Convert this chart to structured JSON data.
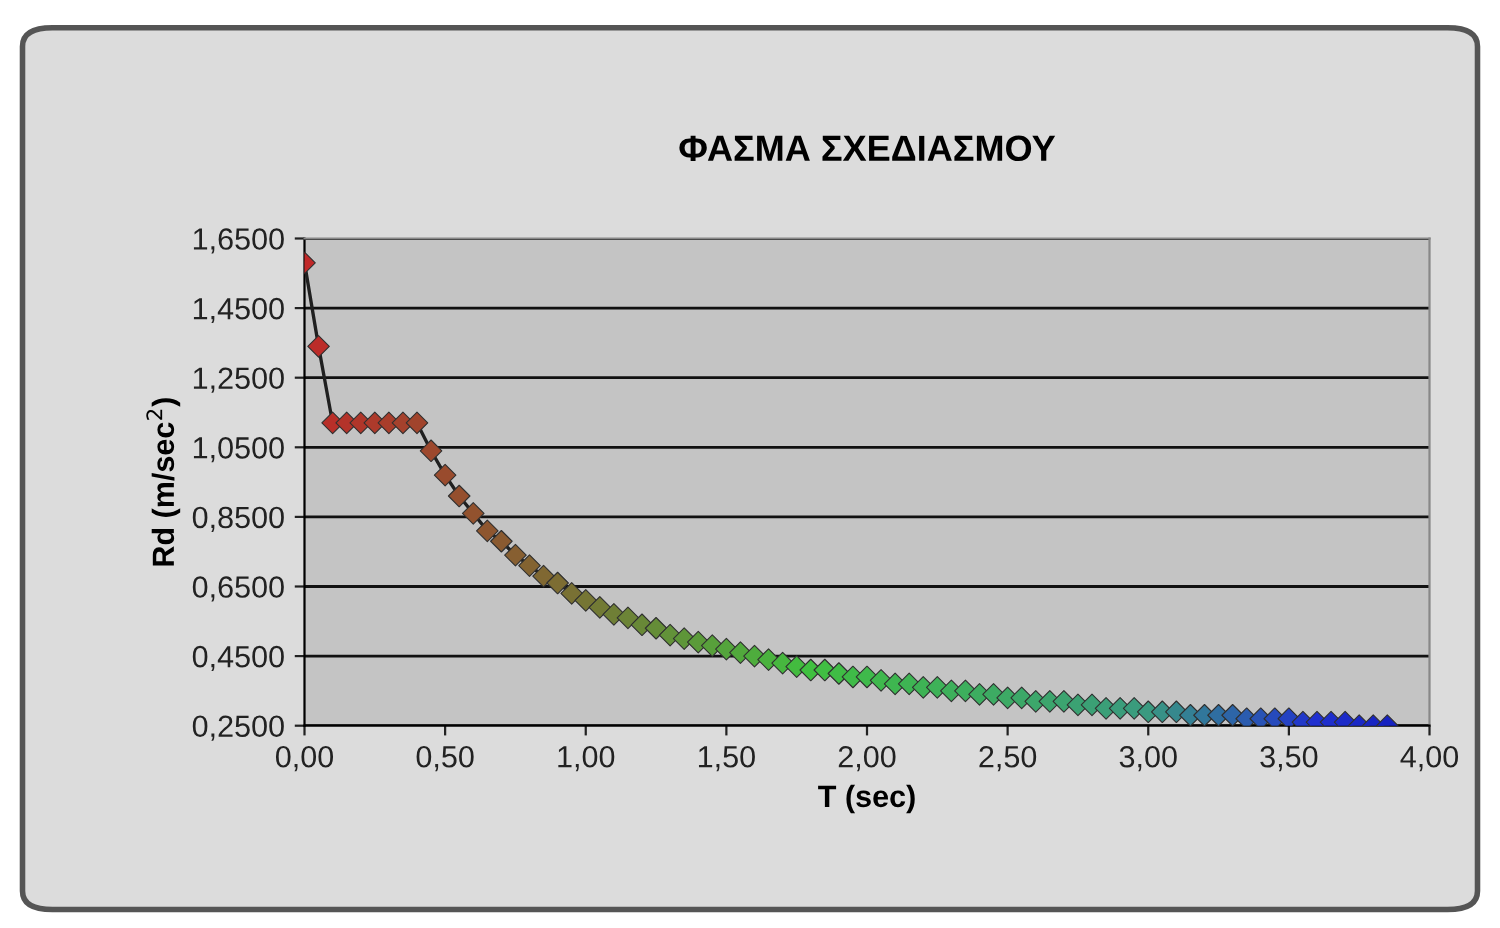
{
  "chart_data": {
    "type": "line",
    "title": "ΦΑΣΜΑ ΣΧΕΔΙΑΣΜΟΥ",
    "xlabel": "T (sec)",
    "ylabel": "Rd (m/sec$^{2}$)",
    "x": [
      0,
      0.05,
      0.1,
      0.15,
      0.2,
      0.25,
      0.3,
      0.35,
      0.4,
      0.45,
      0.5,
      0.55,
      0.6,
      0.65,
      0.7,
      0.75,
      0.8,
      0.85,
      0.9,
      0.95,
      1.0,
      1.05,
      1.1,
      1.15,
      1.2,
      1.25,
      1.3,
      1.35,
      1.4,
      1.45,
      1.5,
      1.55,
      1.6,
      1.65,
      1.7,
      1.75,
      1.8,
      1.85,
      1.9,
      1.95,
      2.0,
      2.05,
      2.1,
      2.15,
      2.2,
      2.25,
      2.3,
      2.35,
      2.4,
      2.45,
      2.5,
      2.55,
      2.6,
      2.65,
      2.7,
      2.75,
      2.8,
      2.85,
      2.9,
      2.95,
      3.0,
      3.05,
      3.1,
      3.15,
      3.2,
      3.25,
      3.3,
      3.35,
      3.4,
      3.45,
      3.5,
      3.55,
      3.6,
      3.65,
      3.7,
      3.75,
      3.8,
      3.85
    ],
    "series": [
      {
        "color": "#202020",
        "values": [
          1.58,
          1.34,
          1.12,
          1.12,
          1.12,
          1.12,
          1.12,
          1.12,
          1.12,
          1.04,
          0.97,
          0.91,
          0.86,
          0.81,
          0.78,
          0.74,
          0.71,
          0.68,
          0.66,
          0.63,
          0.61,
          0.59,
          0.57,
          0.56,
          0.54,
          0.53,
          0.51,
          0.5,
          0.49,
          0.48,
          0.47,
          0.46,
          0.45,
          0.44,
          0.43,
          0.42,
          0.41,
          0.41,
          0.4,
          0.39,
          0.39,
          0.38,
          0.37,
          0.37,
          0.36,
          0.36,
          0.35,
          0.35,
          0.34,
          0.34,
          0.33,
          0.33,
          0.32,
          0.32,
          0.32,
          0.31,
          0.31,
          0.3,
          0.3,
          0.3,
          0.29,
          0.29,
          0.29,
          0.28,
          0.28,
          0.28,
          0.28,
          0.27,
          0.27,
          0.27,
          0.27,
          0.26,
          0.26,
          0.26,
          0.26,
          0.25,
          0.25,
          0.25
        ],
        "colors": [
          "#c02828",
          "#bc2c29",
          "#b82f29",
          "#b4332a",
          "#b0362a",
          "#ad3a2b",
          "#a93d2b",
          "#a5412c",
          "#a1442c",
          "#9d482d",
          "#994b2d",
          "#954f2e",
          "#92522e",
          "#8e562f",
          "#8a5a30",
          "#875f31",
          "#836331",
          "#806832",
          "#7d6d33",
          "#797134",
          "#767634",
          "#727a35",
          "#6f7f36",
          "#6c8437",
          "#688837",
          "#658d38",
          "#629239",
          "#5e9639",
          "#5b9b3a",
          "#58a03b",
          "#54a43c",
          "#51a93c",
          "#4ead3d",
          "#4ab23e",
          "#47b73f",
          "#43bb3f",
          "#40c040",
          "#40be43",
          "#40bd45",
          "#3fbb48",
          "#3fba4b",
          "#3fb84d",
          "#3eb650",
          "#3eb553",
          "#3eb355",
          "#3eb258",
          "#3eb05b",
          "#3daf5d",
          "#3dad60",
          "#3dab63",
          "#3daa65",
          "#3ca868",
          "#3ca76b",
          "#3ca56d",
          "#3ca470",
          "#3ba273",
          "#3ba075",
          "#3b9f78",
          "#3b9d7b",
          "#3a9c7d",
          "#3a9a80",
          "#389187",
          "#36888d",
          "#348094",
          "#31779b",
          "#2f6ea1",
          "#2d65a8",
          "#2b5caf",
          "#2953b5",
          "#264abc",
          "#2442c3",
          "#2239c9",
          "#2030d0",
          "#1e2ecc",
          "#1c2bc9",
          "#1a28c6",
          "#1825c3",
          "#1622c0"
        ]
      }
    ],
    "xlim": [
      0,
      4
    ],
    "ylim": [
      0.25,
      1.65
    ],
    "xticks": [
      {
        "value": 0,
        "label": "0,00"
      },
      {
        "value": 0.5,
        "label": "0,50"
      },
      {
        "value": 1,
        "label": "1,00"
      },
      {
        "value": 1.5,
        "label": "1,50"
      },
      {
        "value": 2,
        "label": "2,00"
      },
      {
        "value": 2.5,
        "label": "2,50"
      },
      {
        "value": 3,
        "label": "3,00"
      },
      {
        "value": 3.5,
        "label": "3,50"
      },
      {
        "value": 4,
        "label": "4,00"
      }
    ],
    "yticks": [
      {
        "value": 0.25,
        "label": "0,2500"
      },
      {
        "value": 0.45,
        "label": "0,4500"
      },
      {
        "value": 0.65,
        "label": "0,6500"
      },
      {
        "value": 0.85,
        "label": "0,8500"
      },
      {
        "value": 1.05,
        "label": "1,0500"
      },
      {
        "value": 1.25,
        "label": "1,2500"
      },
      {
        "value": 1.45,
        "label": "1,4500"
      },
      {
        "value": 1.65,
        "label": "1,6500"
      }
    ],
    "grid": "y",
    "marker": "diamond",
    "line_style": "solid",
    "legend": false
  }
}
